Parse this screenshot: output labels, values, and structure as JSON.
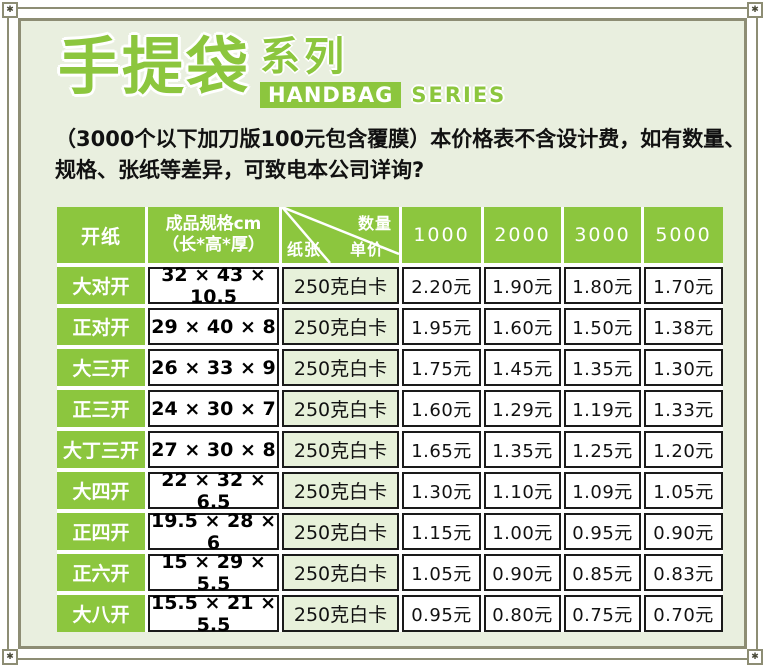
{
  "title": {
    "main": "手提袋",
    "sub": "系列",
    "badge_en": "HANDBAG",
    "series_en": "SERIES"
  },
  "note": {
    "lines": [
      "（3000个以下加刀版100元包含覆膜）本价格表不含设计费，如有数量、",
      "规格、张纸等差异，可致电本公司详询?"
    ]
  },
  "table": {
    "header": {
      "cut_paper": "开纸",
      "size_line1": "成品规格cm",
      "size_line2": "（长*高*厚）",
      "diagonal": {
        "quantity": "数量",
        "paper": "纸张",
        "unit_price": "单价"
      },
      "quantities": [
        "1000",
        "2000",
        "3000",
        "5000"
      ]
    },
    "rows": [
      {
        "name": "大对开",
        "size": "32 × 43 × 10.5",
        "paper": "250克白卡",
        "prices": [
          "2.20元",
          "1.90元",
          "1.80元",
          "1.70元"
        ]
      },
      {
        "name": "正对开",
        "size": "29 × 40 × 8",
        "paper": "250克白卡",
        "prices": [
          "1.95元",
          "1.60元",
          "1.50元",
          "1.38元"
        ]
      },
      {
        "name": "大三开",
        "size": "26 × 33 × 9",
        "paper": "250克白卡",
        "prices": [
          "1.75元",
          "1.45元",
          "1.35元",
          "1.30元"
        ]
      },
      {
        "name": "正三开",
        "size": "24 × 30 × 7",
        "paper": "250克白卡",
        "prices": [
          "1.60元",
          "1.29元",
          "1.19元",
          "1.33元"
        ]
      },
      {
        "name": "大丁三开",
        "size": "27 × 30 × 8",
        "paper": "250克白卡",
        "prices": [
          "1.65元",
          "1.35元",
          "1.25元",
          "1.20元"
        ]
      },
      {
        "name": "大四开",
        "size": "22 × 32 × 6.5",
        "paper": "250克白卡",
        "prices": [
          "1.30元",
          "1.10元",
          "1.09元",
          "1.05元"
        ]
      },
      {
        "name": "正四开",
        "size": "19.5 × 28 × 6",
        "paper": "250克白卡",
        "prices": [
          "1.15元",
          "1.00元",
          "0.95元",
          "0.90元"
        ]
      },
      {
        "name": "正六开",
        "size": "15 × 29 × 5.5",
        "paper": "250克白卡",
        "prices": [
          "1.05元",
          "0.90元",
          "0.85元",
          "0.83元"
        ]
      },
      {
        "name": "大八开",
        "size": "15.5 × 21 × 5.5",
        "paper": "250克白卡",
        "prices": [
          "0.95元",
          "0.80元",
          "0.75元",
          "0.70元"
        ]
      }
    ]
  },
  "icons": {
    "corner_glyph": "✱"
  },
  "colors": {
    "accent_green": "#8cc63e",
    "light_green_bg": "#e9efdf",
    "paper_cell_bg": "#e7f1da",
    "frame_olive": "#8d8d74",
    "text_black": "#111111",
    "white": "#ffffff"
  }
}
